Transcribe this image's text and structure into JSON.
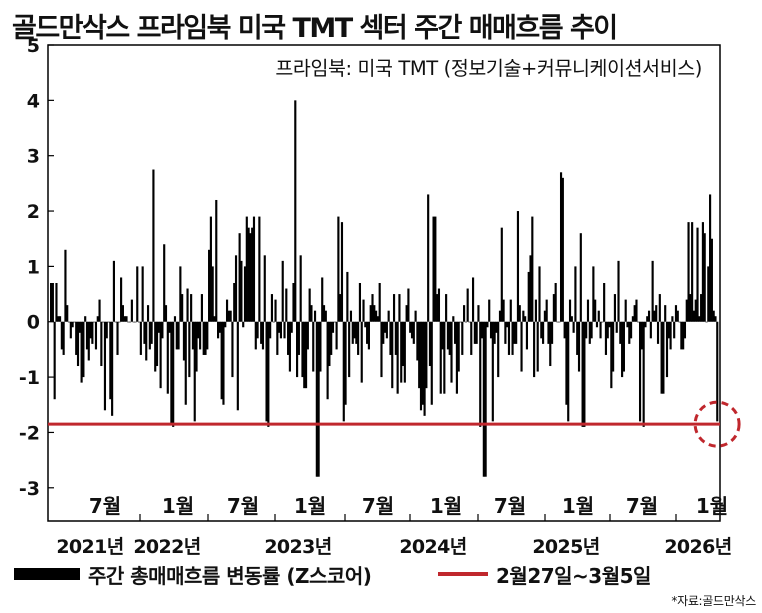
{
  "title": "골드만삭스 프라임북 미국 TMT 섹터 주간 매매흐름 추이",
  "chart_data": {
    "type": "bar",
    "subtitle": "프라임북: 미국 TMT (정보기술+커뮤니케이션서비스)",
    "ylim": [
      -3.6,
      5
    ],
    "yticks": [
      "5",
      "4",
      "3",
      "2",
      "1",
      "0",
      "-1",
      "-2",
      "-3"
    ],
    "month_ticks": [
      "7월",
      "1월",
      "7월",
      "1월",
      "7월",
      "1월",
      "7월",
      "1월",
      "7월",
      "1월"
    ],
    "year_ticks": [
      "2021년",
      "2022년",
      "2023년",
      "2024년",
      "2025년",
      "2026년"
    ],
    "series": [
      {
        "name": "주간 총매매흐름 변동률 (Z스코어)",
        "color": "#000000",
        "values": [
          0.7,
          0.7,
          -1.4,
          0.7,
          0.1,
          0.1,
          -0.5,
          -0.6,
          1.3,
          0.3,
          0.0,
          -0.3,
          -0.1,
          0.0,
          -0.6,
          -0.8,
          -0.2,
          -1.1,
          -1.0,
          0.1,
          -0.5,
          -0.7,
          -0.3,
          -0.4,
          0.0,
          -0.5,
          0.1,
          0.4,
          -0.8,
          0.0,
          -1.6,
          -0.3,
          0.0,
          -1.4,
          -1.7,
          1.1,
          0.0,
          -0.6,
          0.0,
          0.8,
          0.3,
          0.1,
          0.1,
          0.0,
          0.0,
          0.4,
          0.0,
          0.0,
          1.0,
          0.0,
          -0.6,
          1.0,
          -0.4,
          -0.7,
          0.3,
          -0.5,
          -0.4,
          2.75,
          -0.9,
          -0.8,
          -0.2,
          -1.2,
          -0.3,
          1.4,
          0.3,
          -1.3,
          -0.2,
          -1.85,
          -1.9,
          0.1,
          -0.5,
          -0.5,
          1.0,
          0.5,
          -0.7,
          -1.5,
          0.6,
          -1.0,
          0.5,
          -0.5,
          -1.8,
          -0.9,
          -0.3,
          -0.5,
          0.5,
          -0.6,
          -0.6,
          -0.5,
          1.3,
          1.9,
          1.0,
          0.1,
          2.2,
          -0.3,
          -0.2,
          -1.4,
          -1.5,
          -0.1,
          0.4,
          0.2,
          0.2,
          -1.0,
          0.7,
          1.2,
          -1.6,
          1.6,
          1.1,
          -0.1,
          1.0,
          1.9,
          1.7,
          1.6,
          1.7,
          1.9,
          -0.5,
          -0.3,
          1.9,
          -0.4,
          -0.5,
          1.2,
          -1.8,
          -1.9,
          -0.3,
          0.5,
          0.0,
          0.4,
          -0.6,
          -0.2,
          -0.3,
          1.1,
          -0.3,
          0.6,
          -0.6,
          -0.9,
          -0.2,
          0.7,
          4.0,
          -1.0,
          -0.6,
          1.2,
          -1.0,
          -1.2,
          -1.2,
          -0.5,
          0.6,
          0.3,
          -0.9,
          0.2,
          -2.8,
          -2.8,
          -0.9,
          0.8,
          0.3,
          0.2,
          -1.4,
          -0.8,
          -0.6,
          -0.2,
          0.0,
          -0.5,
          1.9,
          0.5,
          1.8,
          -1.8,
          -1.5,
          0.9,
          -1.0,
          0.2,
          -0.4,
          -0.3,
          -0.4,
          -0.6,
          0.7,
          -1.1,
          0.4,
          -0.1,
          -0.4,
          -0.5,
          0.3,
          0.5,
          0.3,
          0.2,
          0.1,
          0.7,
          -1.0,
          -0.4,
          -0.2,
          -0.3,
          0.2,
          -0.6,
          -1.2,
          0.5,
          -0.6,
          -1.3,
          0.5,
          -1.1,
          -0.8,
          -1.1,
          0.3,
          0.6,
          -0.2,
          -0.3,
          -0.4,
          0.2,
          -0.7,
          -1.2,
          -1.6,
          -1.5,
          -1.7,
          -1.2,
          2.3,
          -0.8,
          -1.5,
          1.9,
          1.9,
          0.5,
          0.6,
          -1.3,
          -0.5,
          -1.3,
          0.5,
          -0.5,
          -0.6,
          -1.1,
          0.1,
          -0.4,
          -1.3,
          -0.9,
          0.0,
          -0.6,
          0.3,
          0.0,
          0.6,
          0.0,
          -0.6,
          0.8,
          -0.4,
          -0.4,
          0.3,
          -1.9,
          -0.3,
          -2.8,
          -2.8,
          -0.1,
          0.4,
          -0.3,
          -1.8,
          -0.4,
          -0.2,
          -1.0,
          0.2,
          1.7,
          0.4,
          -0.4,
          -0.1,
          -0.6,
          0.4,
          -0.6,
          -0.4,
          -0.4,
          2.0,
          0.3,
          -0.9,
          0.2,
          0.1,
          -0.5,
          0.9,
          1.2,
          1.9,
          -1.0,
          0.4,
          -0.9,
          1.0,
          -0.3,
          -0.4,
          0.2,
          0.4,
          -0.4,
          -0.8,
          -0.4,
          0.5,
          0.7,
          0.0,
          0.0,
          2.7,
          2.6,
          -0.3,
          -1.5,
          -1.8,
          0.4,
          0.1,
          -0.2,
          1.0,
          -0.6,
          -0.9,
          1.6,
          -1.9,
          -1.9,
          -0.3,
          0.4,
          -0.4,
          -0.3,
          1.0,
          0.4,
          -0.1,
          0.2,
          -0.3,
          0.0,
          0.7,
          -0.6,
          -0.3,
          -0.1,
          -1.2,
          -0.9,
          0.5,
          -0.2,
          1.1,
          -0.4,
          -1.0,
          -0.9,
          0.4,
          -0.1,
          -0.4,
          -0.3,
          0.1,
          0.3,
          0.4,
          0.0,
          -1.8,
          -0.5,
          -1.9,
          -0.1,
          0.1,
          0.2,
          -0.3,
          1.1,
          0.2,
          0.3,
          -0.4,
          0.5,
          -1.3,
          -1.3,
          0.3,
          -1.0,
          -0.3,
          -0.5,
          0.1,
          -0.3,
          0.3,
          0.2,
          0.0,
          -0.5,
          -0.5,
          -0.3,
          0.4,
          1.8,
          0.5,
          1.8,
          0.2,
          0.4,
          1.7,
          0.1,
          0.5,
          1.8,
          1.6,
          0.0,
          1.0,
          2.3,
          1.5,
          0.2,
          0.1,
          -1.8
        ]
      },
      {
        "name": "2월27일~3월5일",
        "color": "#c0272d",
        "level": -1.85
      }
    ],
    "highlight": {
      "color": "#c0272d",
      "marker": "dashed-circle"
    }
  },
  "source": "*자료:골드만삭스"
}
